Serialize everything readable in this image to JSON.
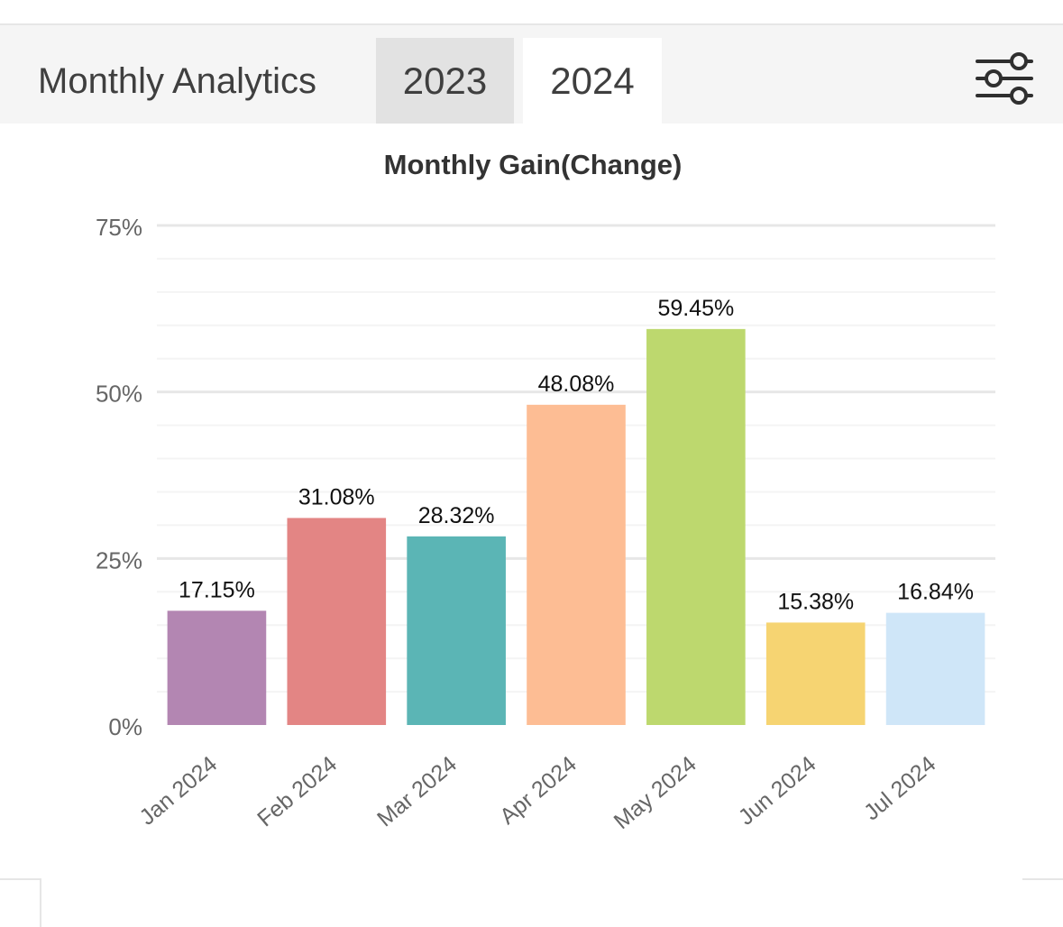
{
  "header": {
    "title": "Monthly Analytics",
    "tabs": [
      {
        "label": "2023",
        "active": false
      },
      {
        "label": "2024",
        "active": true
      }
    ],
    "filter_icon": "sliders-icon"
  },
  "chart_data": {
    "type": "bar",
    "title": "Monthly Gain(Change)",
    "xlabel": "",
    "ylabel": "",
    "ylim": [
      0,
      75
    ],
    "yticks": [
      0,
      25,
      50,
      75
    ],
    "ytick_labels": [
      "0%",
      "25%",
      "50%",
      "75%"
    ],
    "grid": true,
    "categories": [
      "Jan 2024",
      "Feb 2024",
      "Mar 2024",
      "Apr 2024",
      "May 2024",
      "Jun 2024",
      "Jul 2024"
    ],
    "values": [
      17.15,
      31.08,
      28.32,
      48.08,
      59.45,
      15.38,
      16.84
    ],
    "value_labels": [
      "17.15%",
      "31.08%",
      "28.32%",
      "48.08%",
      "59.45%",
      "15.38%",
      "16.84%"
    ],
    "colors": [
      "#b386b2",
      "#e38584",
      "#5bb5b5",
      "#fdbd94",
      "#bdd86e",
      "#f6d472",
      "#cfe6f8"
    ]
  }
}
